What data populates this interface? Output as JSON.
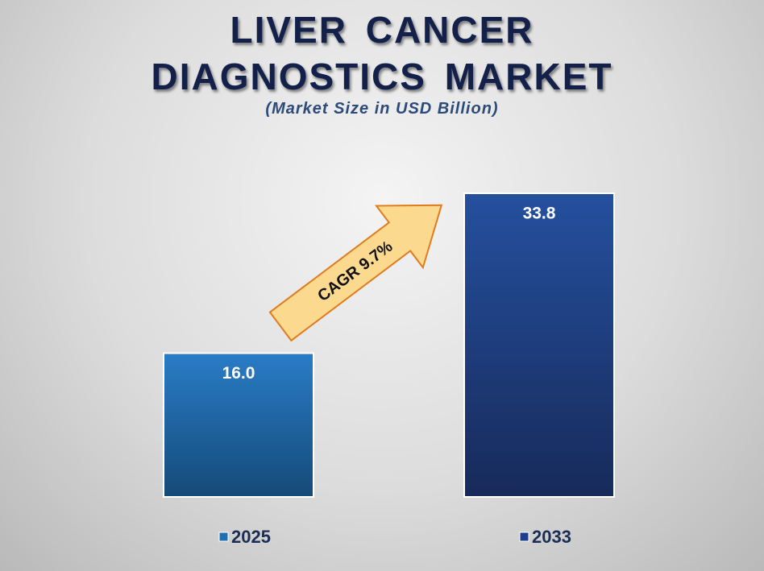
{
  "chart_data": {
    "type": "bar",
    "title": "LIVER CANCER DIAGNOSTICS MARKET",
    "subtitle": "(Market Size in USD Billion)",
    "categories": [
      "2025",
      "2033"
    ],
    "values": [
      16.0,
      33.8
    ],
    "value_labels": [
      "16.0",
      "33.8"
    ],
    "colors": [
      "#1f6fb5",
      "#1e3f8a"
    ],
    "annotation": "CAGR 9.7%"
  }
}
